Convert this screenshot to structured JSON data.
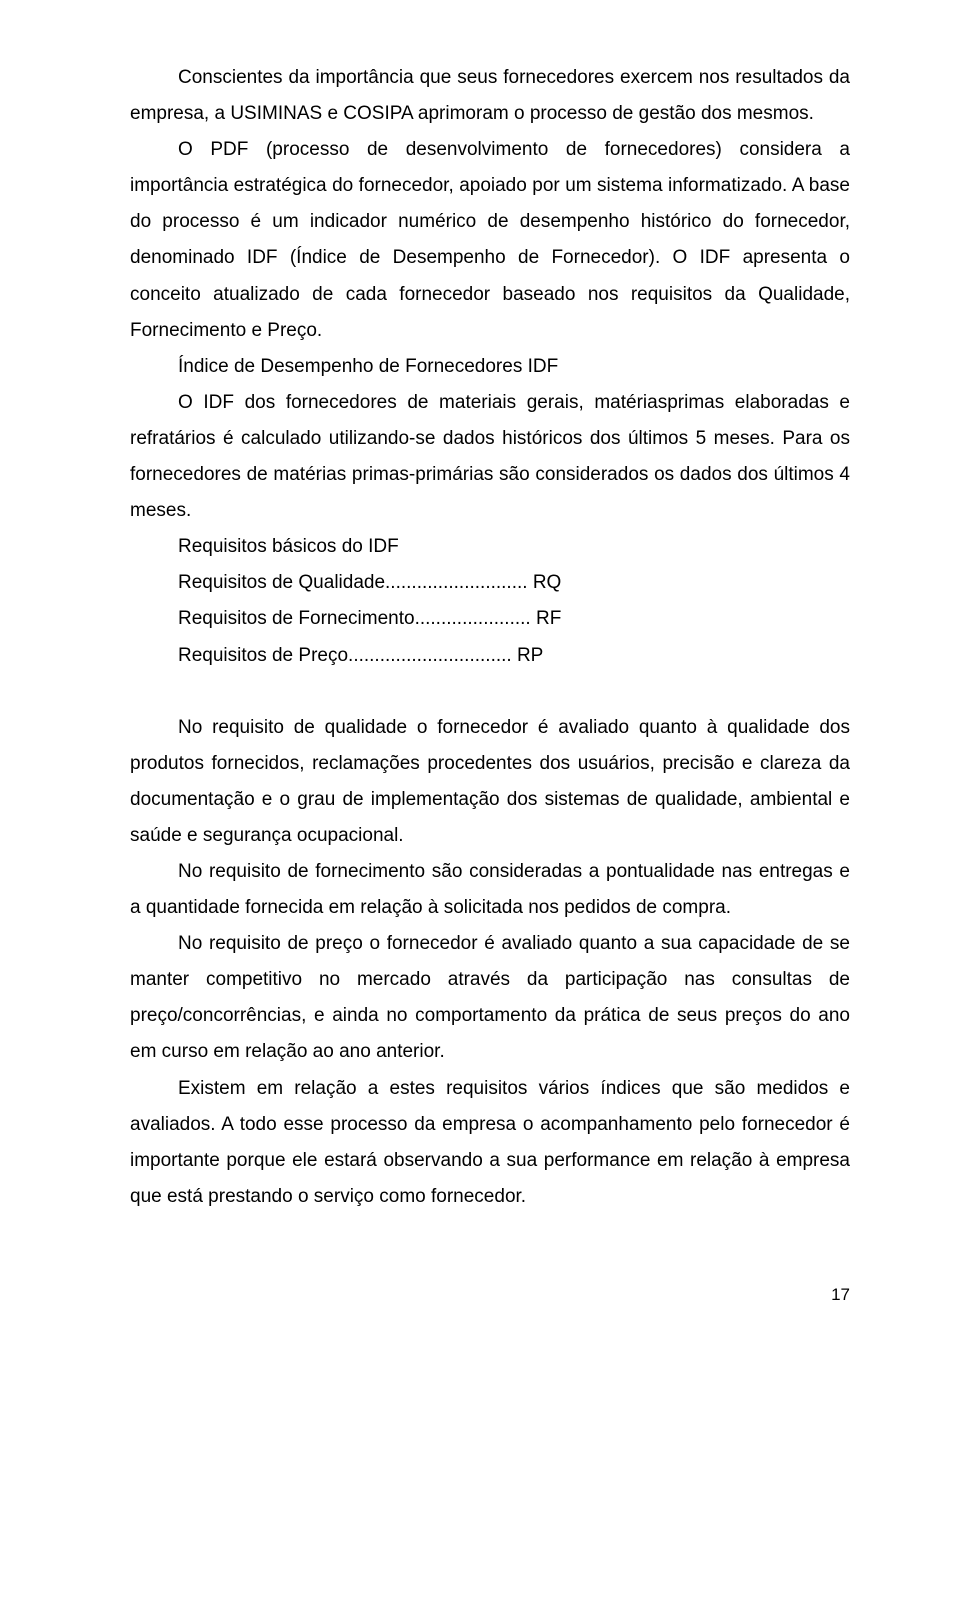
{
  "paragraphs": {
    "p1": "Conscientes da importância que seus fornecedores exercem nos resultados da empresa, a USIMINAS e COSIPA aprimoram o processo de gestão dos mesmos.",
    "p2": "O PDF (processo de desenvolvimento de fornecedores) considera a importância estratégica do fornecedor, apoiado por um sistema informatizado. A base do processo é um indicador numérico de desempenho histórico do fornecedor, denominado IDF (Índice de Desempenho de Fornecedor). O IDF apresenta o conceito atualizado de cada fornecedor baseado nos requisitos da Qualidade, Fornecimento e Preço.",
    "idf_title": "Índice de Desempenho de Fornecedores IDF",
    "p3": "O IDF dos fornecedores de materiais gerais, matériasprimas elaboradas e refratários é calculado utilizando-se dados históricos dos últimos 5 meses. Para os fornecedores de matérias primas-primárias são considerados os dados dos últimos 4 meses.",
    "req_title": "Requisitos básicos do IDF",
    "req1": "Requisitos de Qualidade........................... RQ",
    "req2": "Requisitos de Fornecimento...................... RF",
    "req3": "Requisitos de Preço............................... RP",
    "p4": "No requisito de qualidade o fornecedor é avaliado quanto à qualidade dos produtos fornecidos, reclamações procedentes dos usuários, precisão e clareza da documentação e o grau de implementação dos sistemas de qualidade, ambiental e saúde e segurança ocupacional.",
    "p5": "No requisito de fornecimento são consideradas a pontualidade nas entregas e a quantidade fornecida em relação à solicitada nos pedidos de compra.",
    "p6": "No requisito de preço o fornecedor é avaliado quanto a sua capacidade de se manter competitivo no mercado através da participação nas consultas de preço/concorrências, e ainda no comportamento da prática de seus preços do ano em curso em relação ao ano anterior.",
    "p7": "Existem em relação a estes requisitos vários índices que são medidos e avaliados. A todo esse processo da empresa o acompanhamento pelo fornecedor é importante porque ele estará observando a sua performance em relação à empresa que está prestando o serviço como fornecedor."
  },
  "page_number": "17"
}
